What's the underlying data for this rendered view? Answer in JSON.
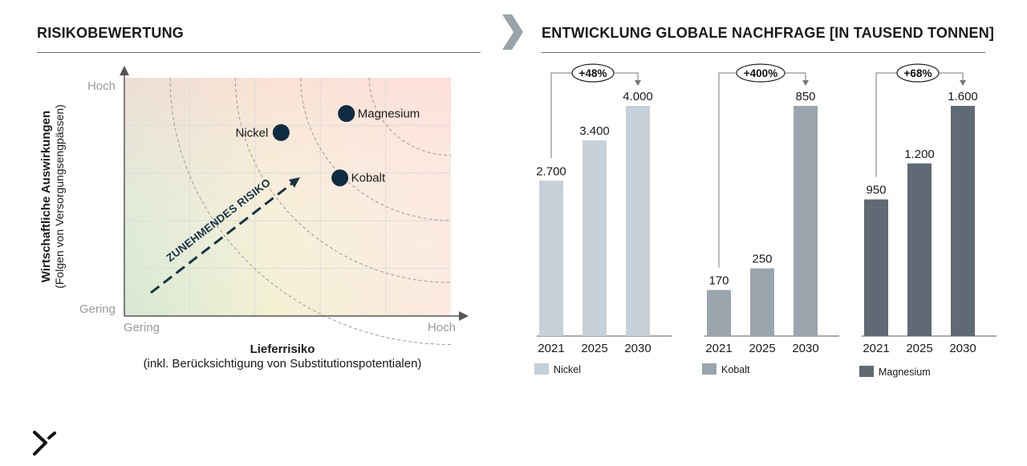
{
  "left": {
    "title": "RISIKOBEWERTUNG",
    "y_axis_title": "Wirtschaftliche Auswirkungen",
    "y_axis_subtitle": "(Folgen von Versorgungsengpässen)",
    "x_axis_title": "Lieferrisiko",
    "x_axis_subtitle": "(inkl. Berücksichtigung von Substitutionspotentialen)",
    "y_high": "Hoch",
    "y_low": "Gering",
    "x_low": "Gering",
    "x_high": "Hoch",
    "arrow_label": "ZUNEHMENDES RISIKO"
  },
  "right": {
    "title": "ENTWICKLUNG GLOBALE NACHFRAGE [IN TAUSEND TONNEN]"
  },
  "colors": {
    "nickel": "#c5d0d8",
    "kobalt": "#9ba5ad",
    "magnesium": "#5f6a74",
    "dot": "#0f2c42"
  },
  "chart_data": [
    {
      "type": "scatter",
      "title": "RISIKOBEWERTUNG",
      "xlabel": "Lieferrisiko",
      "ylabel": "Wirtschaftliche Auswirkungen",
      "xlim": [
        0,
        1
      ],
      "ylim": [
        0,
        1
      ],
      "grid": true,
      "points": [
        {
          "label": "Nickel",
          "x": 0.48,
          "y": 0.77
        },
        {
          "label": "Magnesium",
          "x": 0.68,
          "y": 0.85
        },
        {
          "label": "Kobalt",
          "x": 0.66,
          "y": 0.58
        }
      ]
    },
    {
      "type": "bar",
      "series_name": "Nickel",
      "categories": [
        "2021",
        "2025",
        "2030"
      ],
      "values": [
        2700,
        3400,
        4000
      ],
      "value_labels": [
        "2.700",
        "3.400",
        "4.000"
      ],
      "change": "+48%",
      "ylim": [
        0,
        4000
      ]
    },
    {
      "type": "bar",
      "series_name": "Kobalt",
      "categories": [
        "2021",
        "2025",
        "2030"
      ],
      "values": [
        170,
        250,
        850
      ],
      "value_labels": [
        "170",
        "250",
        "850"
      ],
      "change": "+400%",
      "ylim": [
        0,
        850
      ]
    },
    {
      "type": "bar",
      "series_name": "Magnesium",
      "categories": [
        "2021",
        "2025",
        "2030"
      ],
      "values": [
        950,
        1200,
        1600
      ],
      "value_labels": [
        "950",
        "1.200",
        "1.600"
      ],
      "change": "+68%",
      "ylim": [
        0,
        1600
      ]
    }
  ]
}
